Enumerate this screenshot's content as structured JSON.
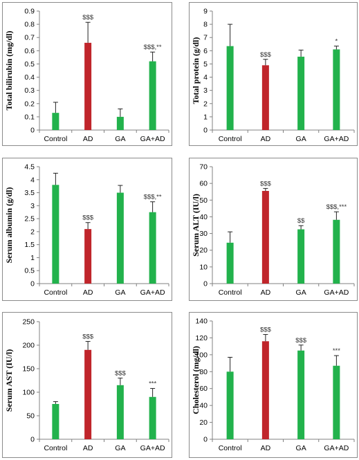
{
  "colors": {
    "control": "#22b24c",
    "disease": "#c0252b",
    "axis": "#808080",
    "error": "#222222"
  },
  "chart_data": [
    {
      "type": "bar",
      "ylabel": "Total bilirubin (mg/dl)",
      "categories": [
        "Control",
        "AD",
        "GA",
        "GA+AD"
      ],
      "values": [
        0.13,
        0.66,
        0.1,
        0.52
      ],
      "errors": [
        0.08,
        0.155,
        0.06,
        0.07
      ],
      "annotations": [
        "",
        "$$$",
        "",
        "$$$,**"
      ],
      "bar_colors": [
        "green",
        "red",
        "green",
        "green"
      ],
      "ylim": [
        0,
        0.9
      ],
      "yticks": [
        "0",
        "0.1",
        "0.2",
        "0.3",
        "0.4",
        "0.5",
        "0.6",
        "0.7",
        "0.8",
        "0.9"
      ]
    },
    {
      "type": "bar",
      "ylabel": "Total protein (g/dl)",
      "categories": [
        "Control",
        "AD",
        "GA",
        "GA+AD"
      ],
      "values": [
        6.35,
        4.9,
        5.55,
        6.1
      ],
      "errors": [
        1.65,
        0.45,
        0.5,
        0.25
      ],
      "annotations": [
        "",
        "$$$",
        "",
        "*"
      ],
      "bar_colors": [
        "green",
        "red",
        "green",
        "green"
      ],
      "ylim": [
        0,
        9
      ],
      "yticks": [
        "0",
        "1",
        "2",
        "3",
        "4",
        "5",
        "6",
        "7",
        "8",
        "9"
      ]
    },
    {
      "type": "bar",
      "ylabel": "Serum albumin (g/dl)",
      "categories": [
        "Control",
        "AD",
        "GA",
        "GA+AD"
      ],
      "values": [
        3.8,
        2.1,
        3.5,
        2.75
      ],
      "errors": [
        0.45,
        0.25,
        0.28,
        0.4
      ],
      "annotations": [
        "",
        "$$$",
        "",
        "$$$,**"
      ],
      "bar_colors": [
        "green",
        "red",
        "green",
        "green"
      ],
      "ylim": [
        0,
        4.5
      ],
      "yticks": [
        "0",
        "0.5",
        "1",
        "1.5",
        "2",
        "2.5",
        "3",
        "3.5",
        "4",
        "4.5"
      ]
    },
    {
      "type": "bar",
      "ylabel": "Serum ALT (IU/l)",
      "categories": [
        "Control",
        "AD",
        "GA",
        "GA+AD"
      ],
      "values": [
        24.5,
        55.5,
        32.5,
        38.2
      ],
      "errors": [
        6.5,
        1.5,
        2.2,
        4.8
      ],
      "annotations": [
        "",
        "$$$",
        "$$",
        "$$$,***"
      ],
      "bar_colors": [
        "green",
        "red",
        "green",
        "green"
      ],
      "ylim": [
        0,
        70
      ],
      "yticks": [
        "0",
        "10",
        "20",
        "30",
        "40",
        "50",
        "60",
        "70"
      ]
    },
    {
      "type": "bar",
      "ylabel": "Serum AST (IU/l)",
      "categories": [
        "Control",
        "AD",
        "GA",
        "GA+AD"
      ],
      "values": [
        75,
        190,
        115,
        90
      ],
      "errors": [
        5,
        18,
        15,
        18
      ],
      "annotations": [
        "",
        "$$$",
        "$$$",
        "***"
      ],
      "bar_colors": [
        "green",
        "red",
        "green",
        "green"
      ],
      "ylim": [
        0,
        250
      ],
      "yticks": [
        "0",
        "50",
        "100",
        "150",
        "200",
        "250"
      ]
    },
    {
      "type": "bar",
      "ylabel": "Cholesterol (mg/dl)",
      "categories": [
        "Control",
        "AD",
        "GA",
        "GA+AD"
      ],
      "values": [
        80,
        116,
        105,
        87
      ],
      "errors": [
        17,
        8,
        6.5,
        12
      ],
      "annotations": [
        "",
        "$$$",
        "$$$",
        "***"
      ],
      "bar_colors": [
        "green",
        "red",
        "green",
        "green"
      ],
      "ylim": [
        0,
        140
      ],
      "yticks": [
        "0",
        "20",
        "40",
        "60",
        "80",
        "100",
        "120",
        "140"
      ]
    }
  ]
}
